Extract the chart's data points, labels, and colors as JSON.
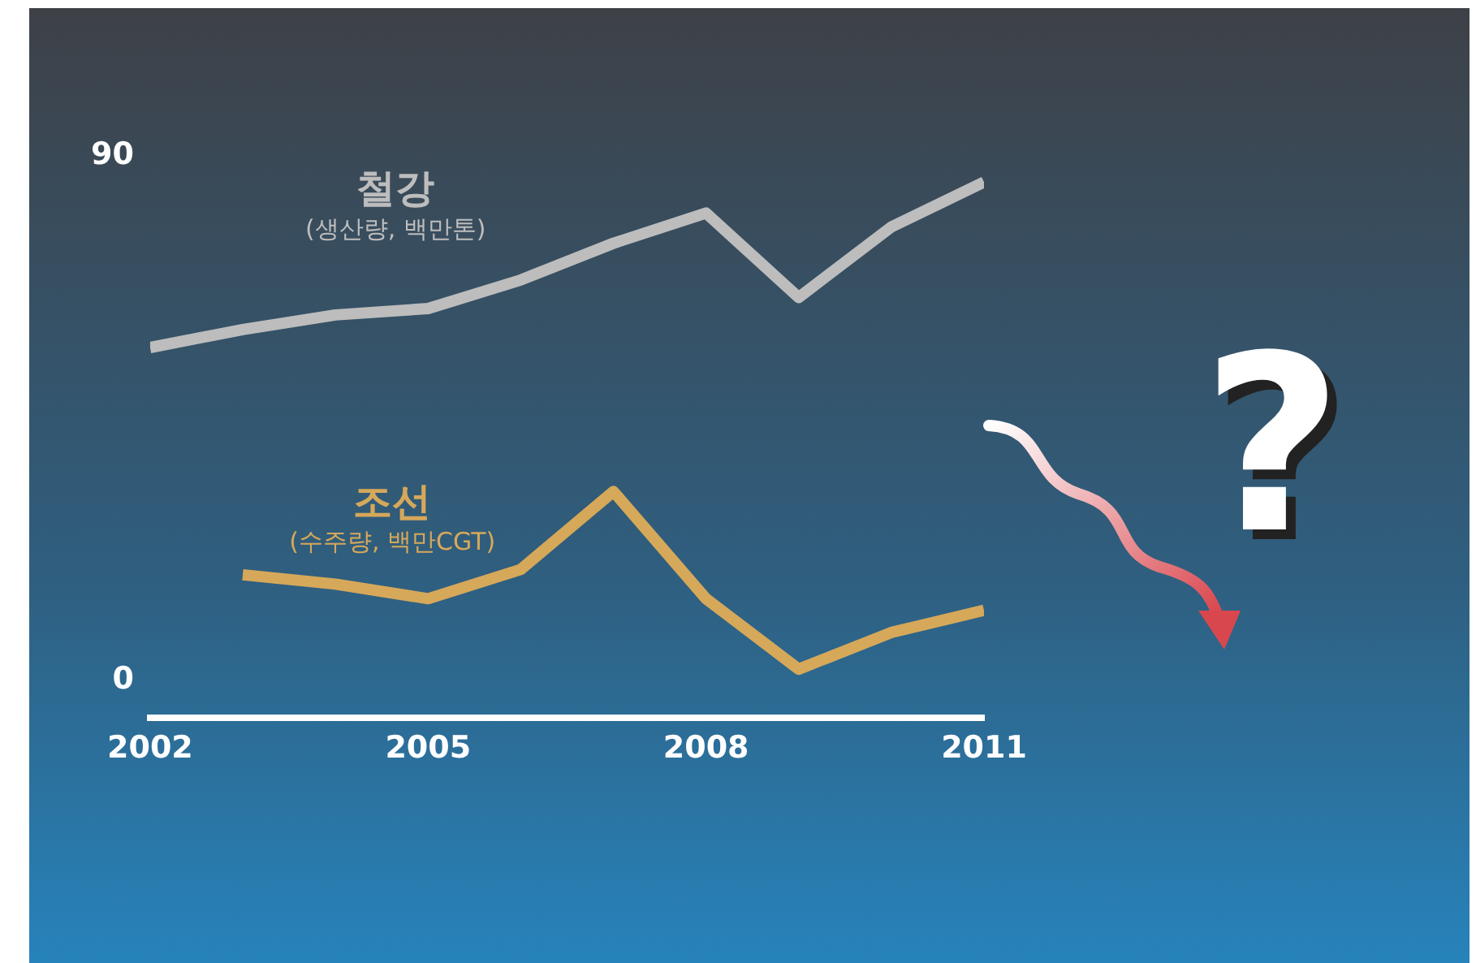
{
  "chart_data": {
    "type": "line",
    "x": [
      2002,
      2003,
      2004,
      2005,
      2006,
      2007,
      2008,
      2009,
      2010,
      2011
    ],
    "series": [
      {
        "name": "철강\n(생산량, 백만톤)",
        "color": "#bdbdbd",
        "values": [
          57.1,
          60.2,
          62.7,
          63.8,
          68.7,
          75,
          80.2,
          65.7,
          77.8,
          85.5
        ]
      },
      {
        "name": "조선\n(수주량, 백만CGT)",
        "color": "#d6a85a",
        "values": [
          null,
          18.1,
          16.5,
          14,
          19,
          32.4,
          14,
          1.9,
          8.2,
          12
        ]
      }
    ],
    "xlim": [
      2002,
      2011
    ],
    "xticks": [
      2002,
      2005,
      2008,
      2011
    ],
    "ylim": [
      -6.5,
      90
    ],
    "yticks": [
      0,
      90
    ],
    "grid": false,
    "legend": false,
    "marker": "none",
    "line_style": "solid",
    "annotations": [
      "?"
    ]
  }
}
